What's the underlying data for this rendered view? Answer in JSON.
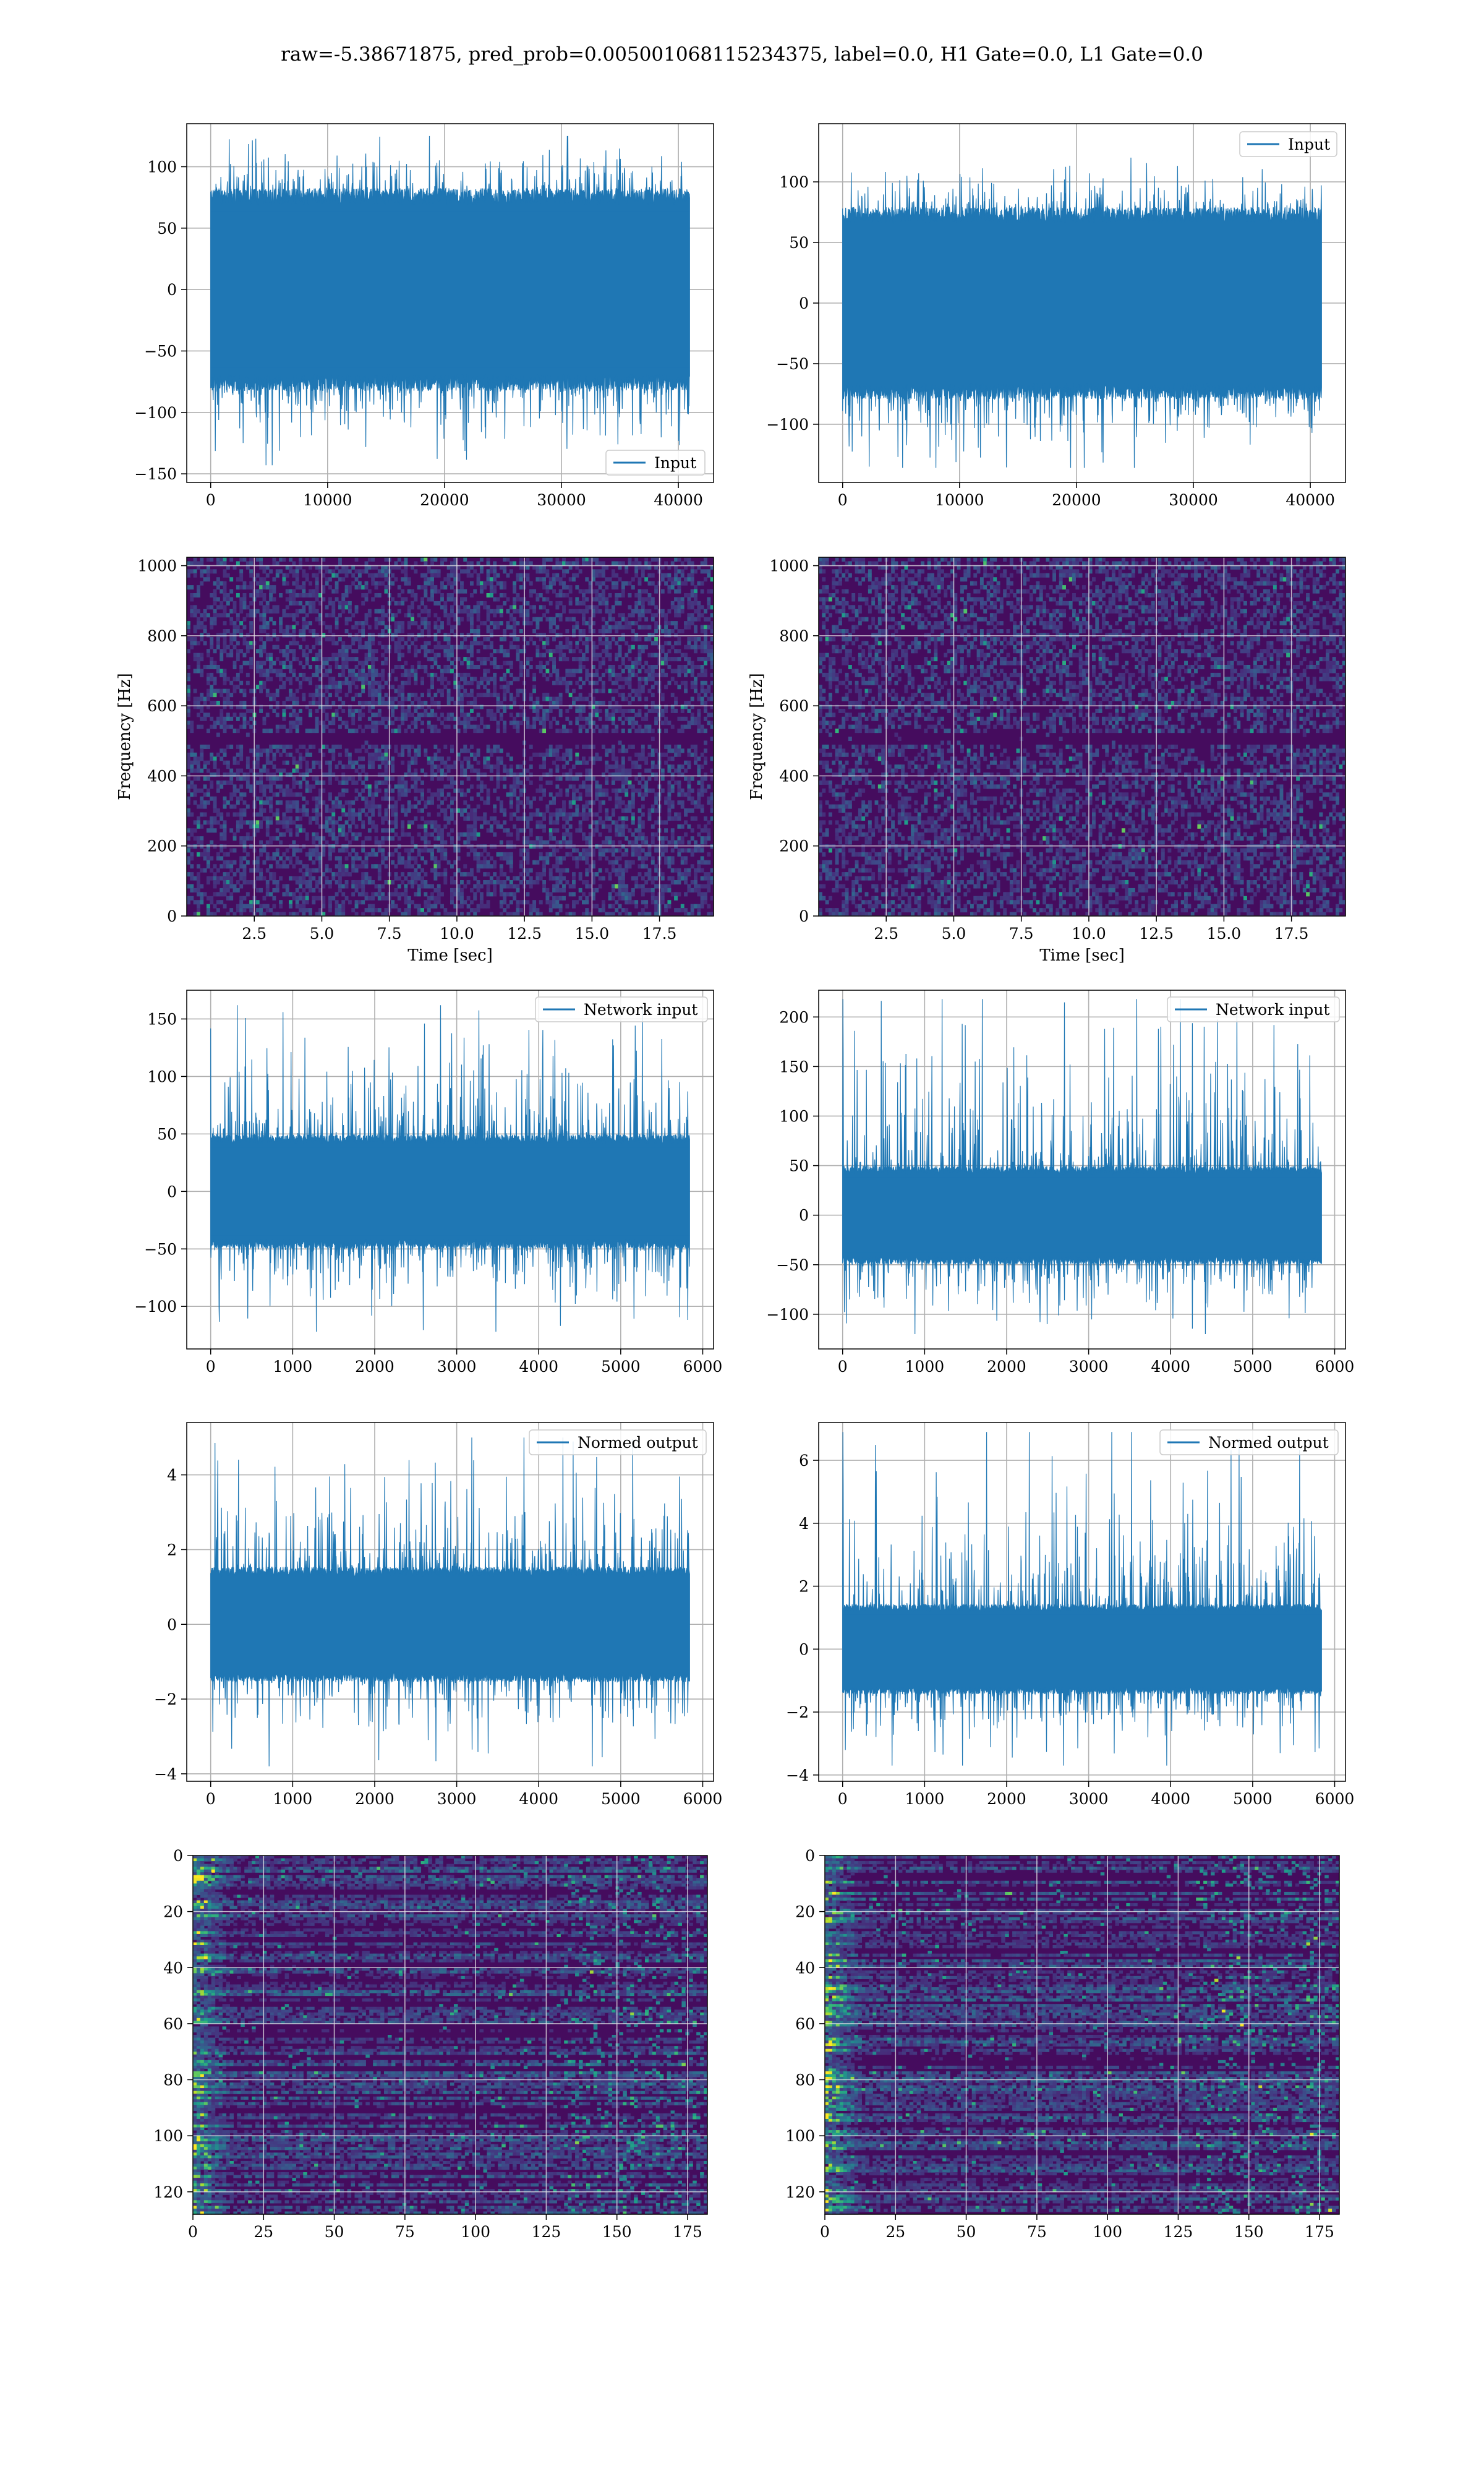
{
  "figure": {
    "suptitle": "raw=-5.38671875, pred_prob=0.005001068115234375, label=0.0, H1 Gate=0.0, L1 Gate=0.0",
    "line_color": "#1f77b4"
  },
  "chart_data": [
    {
      "id": "r1c1",
      "type": "line",
      "legend": [
        "Input"
      ],
      "legend_loc": "lower right",
      "xlim": [
        -2048,
        43008
      ],
      "xticks": [
        0,
        10000,
        20000,
        30000,
        40000
      ],
      "ylim": [
        -157,
        135
      ],
      "yticks": [
        -150,
        -100,
        -50,
        0,
        50,
        100
      ],
      "series": [
        {
          "name": "Input",
          "x_range": [
            0,
            40960
          ],
          "points": 40960,
          "envelope_core": [
            -75,
            75
          ],
          "envelope_peak": [
            -143,
            125
          ]
        }
      ],
      "grid": true
    },
    {
      "id": "r1c2",
      "type": "line",
      "legend": [
        "Input"
      ],
      "legend_loc": "upper right",
      "xlim": [
        -2048,
        43008
      ],
      "xticks": [
        0,
        10000,
        20000,
        30000,
        40000
      ],
      "ylim": [
        -148,
        148
      ],
      "yticks": [
        -100,
        -50,
        0,
        50,
        100
      ],
      "series": [
        {
          "name": "Input",
          "x_range": [
            0,
            40960
          ],
          "points": 40960,
          "envelope_core": [
            -72,
            72
          ],
          "envelope_peak": [
            -136,
            120
          ]
        }
      ],
      "grid": true
    },
    {
      "id": "r2c1",
      "type": "heatmap",
      "xlabel": "Time [sec]",
      "ylabel": "Frequency [Hz]",
      "xlim": [
        0,
        19.5
      ],
      "xticks": [
        2.5,
        5.0,
        7.5,
        10.0,
        12.5,
        15.0,
        17.5
      ],
      "ylim": [
        0,
        1024
      ],
      "yticks": [
        0,
        200,
        400,
        600,
        800,
        1000
      ],
      "colormap": "viridis",
      "grid": true
    },
    {
      "id": "r2c2",
      "type": "heatmap",
      "xlabel": "Time [sec]",
      "ylabel": "Frequency [Hz]",
      "xlim": [
        0,
        19.5
      ],
      "xticks": [
        2.5,
        5.0,
        7.5,
        10.0,
        12.5,
        15.0,
        17.5
      ],
      "ylim": [
        0,
        1024
      ],
      "yticks": [
        0,
        200,
        400,
        600,
        800,
        1000
      ],
      "colormap": "viridis",
      "grid": true
    },
    {
      "id": "r3c1",
      "type": "line",
      "legend": [
        "Network input"
      ],
      "legend_loc": "upper right",
      "xlim": [
        -292,
        6132
      ],
      "xticks": [
        0,
        1000,
        2000,
        3000,
        4000,
        5000,
        6000
      ],
      "ylim": [
        -137,
        175
      ],
      "yticks": [
        -100,
        -50,
        0,
        50,
        100,
        150
      ],
      "series": [
        {
          "name": "Network input",
          "x_range": [
            0,
            5840
          ],
          "points": 5840,
          "envelope_core": [
            -45,
            45
          ],
          "envelope_peak": [
            -122,
            162
          ]
        }
      ],
      "grid": true
    },
    {
      "id": "r3c2",
      "type": "line",
      "legend": [
        "Network input"
      ],
      "legend_loc": "upper right",
      "xlim": [
        -292,
        6132
      ],
      "xticks": [
        0,
        1000,
        2000,
        3000,
        4000,
        5000,
        6000
      ],
      "ylim": [
        -135,
        227
      ],
      "yticks": [
        -100,
        -50,
        0,
        50,
        100,
        150,
        200
      ],
      "series": [
        {
          "name": "Network input",
          "x_range": [
            0,
            5840
          ],
          "points": 5840,
          "envelope_core": [
            -45,
            45
          ],
          "envelope_peak": [
            -120,
            218
          ]
        }
      ],
      "grid": true
    },
    {
      "id": "r4c1",
      "type": "line",
      "legend": [
        "Normed output"
      ],
      "legend_loc": "upper right",
      "xlim": [
        -292,
        6132
      ],
      "xticks": [
        0,
        1000,
        2000,
        3000,
        4000,
        5000,
        6000
      ],
      "ylim": [
        -4.2,
        5.4
      ],
      "yticks": [
        -4,
        -2,
        0,
        2,
        4
      ],
      "series": [
        {
          "name": "Normed output",
          "x_range": [
            0,
            5840
          ],
          "points": 5840,
          "envelope_core": [
            -1.4,
            1.4
          ],
          "envelope_peak": [
            -3.8,
            5.0
          ]
        }
      ],
      "grid": true
    },
    {
      "id": "r4c2",
      "type": "line",
      "legend": [
        "Normed output"
      ],
      "legend_loc": "upper right",
      "xlim": [
        -292,
        6132
      ],
      "xticks": [
        0,
        1000,
        2000,
        3000,
        4000,
        5000,
        6000
      ],
      "ylim": [
        -4.2,
        7.2
      ],
      "yticks": [
        -4,
        -2,
        0,
        2,
        4,
        6
      ],
      "series": [
        {
          "name": "Normed output",
          "x_range": [
            0,
            5840
          ],
          "points": 5840,
          "envelope_core": [
            -1.3,
            1.3
          ],
          "envelope_peak": [
            -3.7,
            6.9
          ]
        }
      ],
      "grid": true
    },
    {
      "id": "r5c1",
      "type": "heatmap",
      "xlim": [
        0,
        182
      ],
      "xticks": [
        0,
        25,
        50,
        75,
        100,
        125,
        150,
        175
      ],
      "ylim": [
        0,
        128
      ],
      "yticks": [
        0,
        20,
        40,
        60,
        80,
        100,
        120
      ],
      "yinverted": true,
      "colormap": "viridis",
      "grid": true
    },
    {
      "id": "r5c2",
      "type": "heatmap",
      "xlim": [
        0,
        182
      ],
      "xticks": [
        0,
        25,
        50,
        75,
        100,
        125,
        150,
        175
      ],
      "ylim": [
        0,
        128
      ],
      "yticks": [
        0,
        20,
        40,
        60,
        80,
        100,
        120
      ],
      "yinverted": true,
      "colormap": "viridis",
      "grid": true
    }
  ]
}
